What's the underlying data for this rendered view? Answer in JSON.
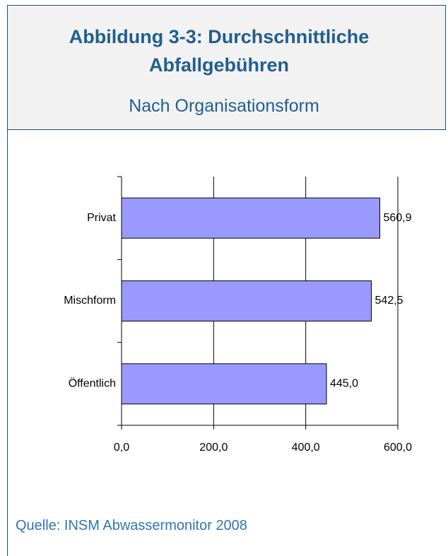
{
  "chart_data": {
    "type": "barh",
    "title": "Abbildung 3-3: Durchschnittliche Abfallgebühren",
    "subtitle": "Nach Organisationsform",
    "source": "Quelle: INSM Abwassermonitor 2008",
    "categories": [
      "Privat",
      "Mischform",
      "Öffentlich"
    ],
    "values": [
      560.9,
      542.5,
      445.0
    ],
    "value_labels": [
      "560,9",
      "542,5",
      "445,0"
    ],
    "color": "#9999ff",
    "xlim": [
      0,
      600
    ],
    "xticks": [
      {
        "value": 0,
        "label": "0,0"
      },
      {
        "value": 200,
        "label": "200,0"
      },
      {
        "value": 400,
        "label": "400,0"
      },
      {
        "value": 600,
        "label": "600,0"
      }
    ],
    "grid": true
  }
}
